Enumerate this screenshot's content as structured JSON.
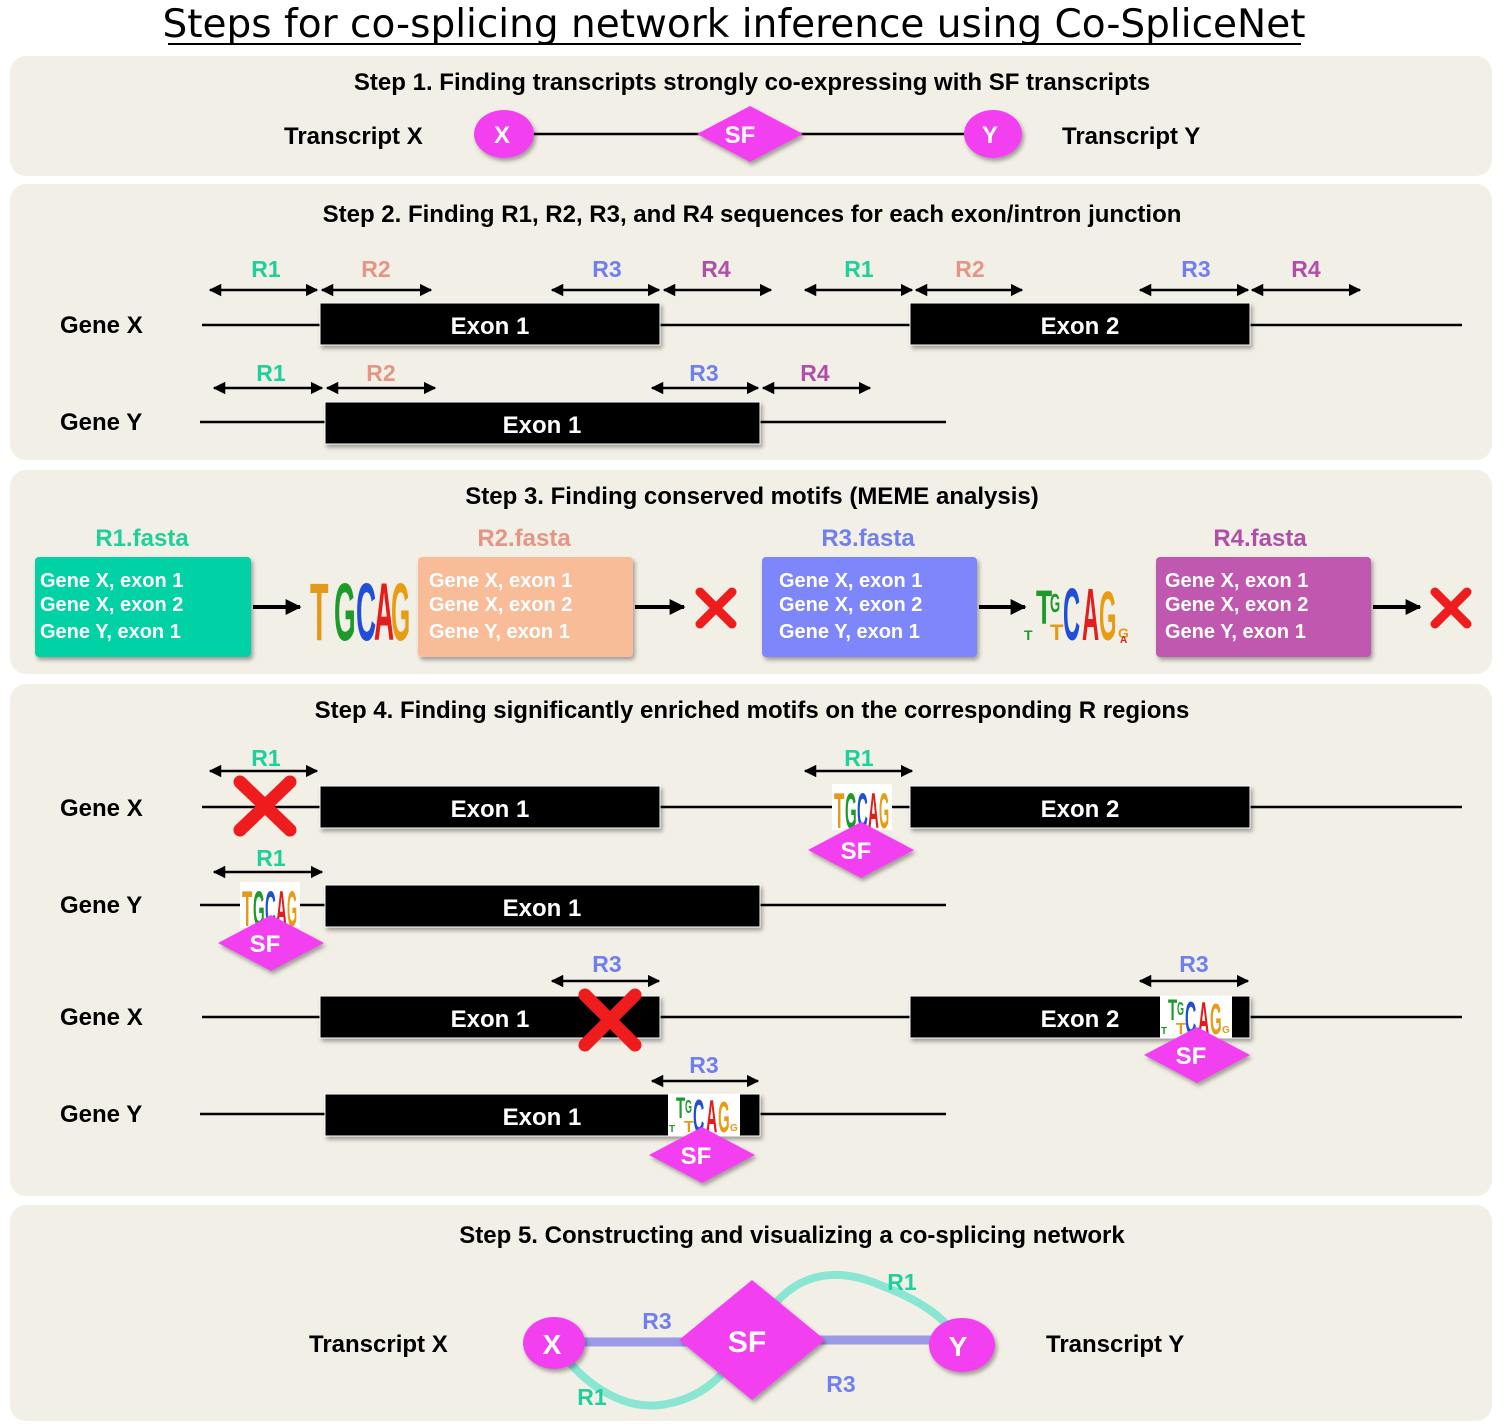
{
  "title": "Steps for co-splicing network inference using Co-SpliceNet",
  "colors": {
    "panel": "#f2efe6",
    "R1": "#1fcf9c",
    "R2": "#e49686",
    "R3": "#6f7fee",
    "R4": "#b04fa8",
    "node": "#f23ff0",
    "cross": "#ee1c1c",
    "R1box": "#00d2a6",
    "R2box": "#f8bd98",
    "R3box": "#7d86fb",
    "R4box": "#c158b0"
  },
  "step1": {
    "title": "Step 1. Finding transcripts strongly co-expressing with SF transcripts",
    "left_label": "Transcript X",
    "right_label": "Transcript  Y",
    "node_x": "X",
    "node_sf": "SF",
    "node_y": "Y"
  },
  "step2": {
    "title": "Step 2. Finding R1, R2, R3, and R4 sequences for each exon/intron junction",
    "gene_x": "Gene X",
    "gene_y": "Gene Y",
    "exon1": "Exon 1",
    "exon2": "Exon 2",
    "r1": "R1",
    "r2": "R2",
    "r3": "R3",
    "r4": "R4"
  },
  "step3": {
    "title": "Step 3. Finding conserved motifs  (MEME analysis)",
    "fasta": [
      "R1.fasta",
      "R2.fasta",
      "R3.fasta",
      "R4.fasta"
    ],
    "entries": [
      "Gene X, exon 1",
      "Gene X, exon 2",
      "Gene Y, exon 1"
    ],
    "motif": "TGCAG"
  },
  "step4": {
    "title": "Step 4. Finding significantly enriched motifs on the corresponding R regions",
    "gene_x": "Gene X",
    "gene_y": "Gene Y",
    "exon1": "Exon 1",
    "exon2": "Exon 2",
    "r1": "R1",
    "r3": "R3",
    "sf": "SF"
  },
  "step5": {
    "title": "Step 5. Constructing and visualizing a co-splicing network",
    "left_label": "Transcript X",
    "right_label": "Transcript Y",
    "node_x": "X",
    "node_sf": "SF",
    "node_y": "Y",
    "edge_r3_top": "R3",
    "edge_r1_top": "R1",
    "edge_r1_bottom": "R1",
    "edge_r3_bottom": "R3"
  }
}
